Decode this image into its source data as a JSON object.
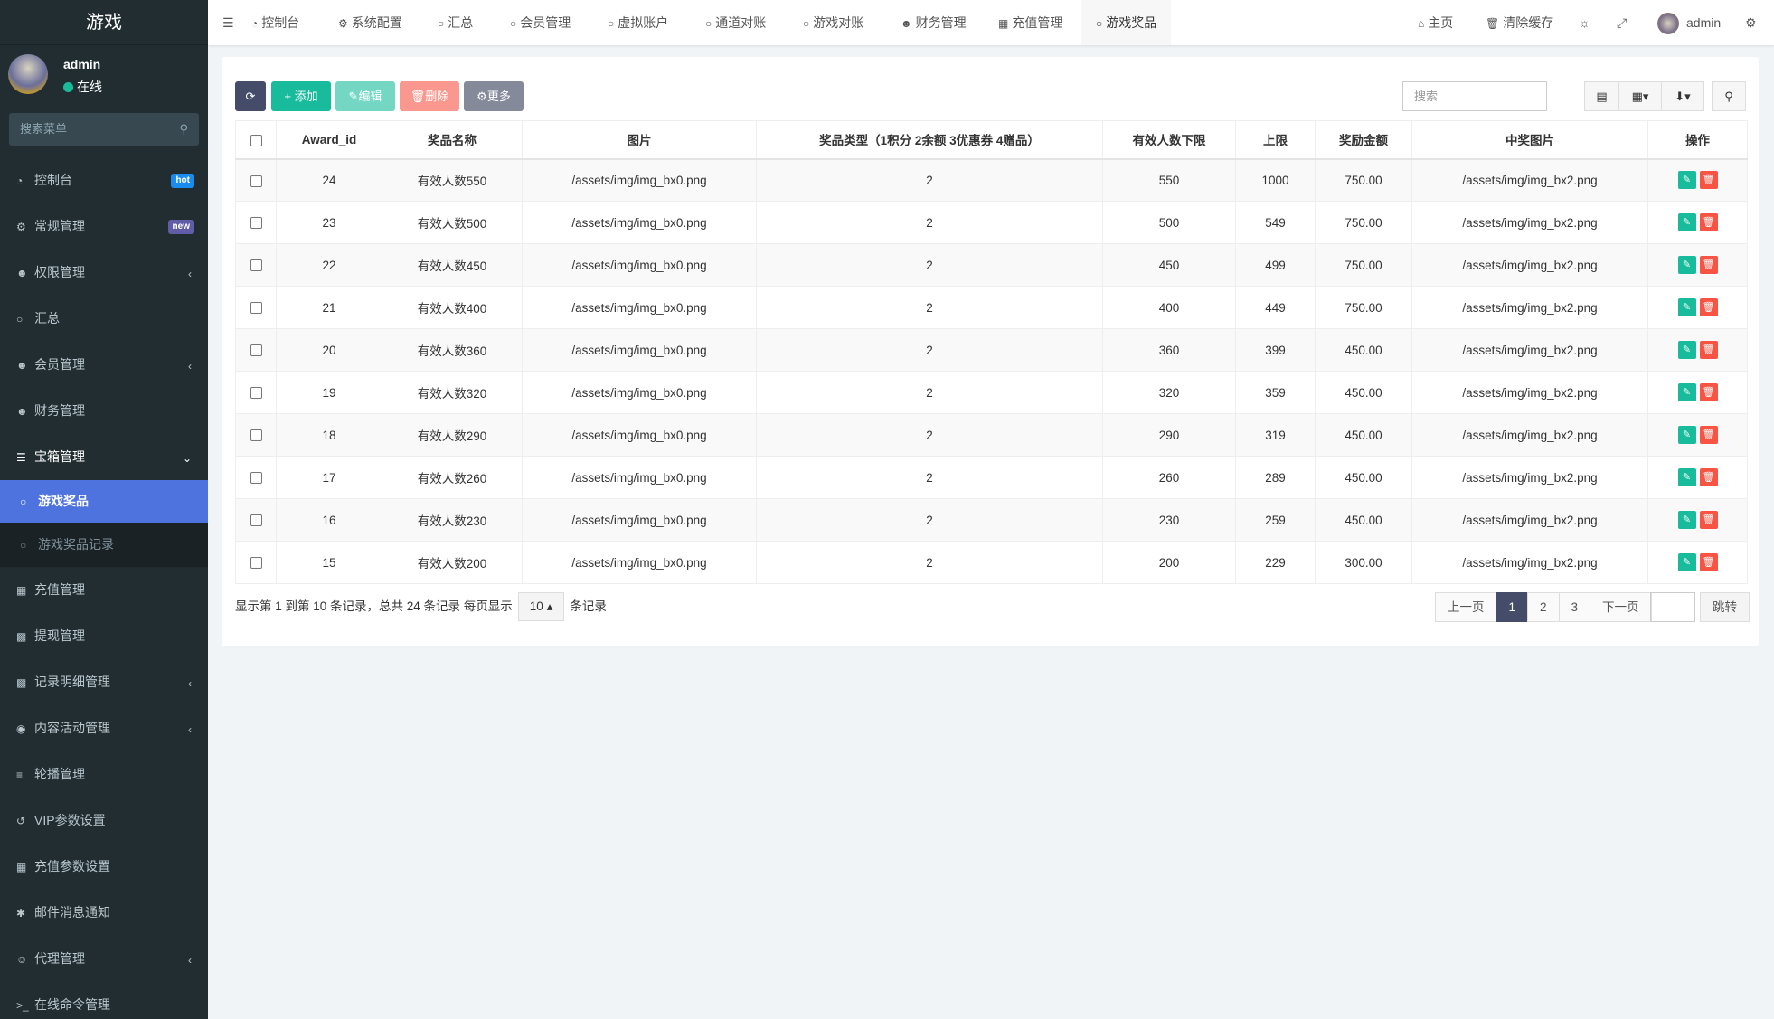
{
  "app": {
    "title": "游戏"
  },
  "user": {
    "name": "admin",
    "status": "在线"
  },
  "menu_search": {
    "placeholder": "搜索菜单"
  },
  "colors": {
    "sidebar": "#222d32",
    "active": "#4e73df",
    "primary": "#444c69",
    "success": "#18bc9c",
    "danger": "#f75444",
    "hot": "#1a8cf0",
    "new": "#605ca8"
  },
  "sidebar": {
    "items": [
      {
        "label": "控制台",
        "icon": "dashboard-icon",
        "badge": "hot"
      },
      {
        "label": "常规管理",
        "icon": "cogs-icon",
        "badge": "new"
      },
      {
        "label": "权限管理",
        "icon": "users-icon",
        "chevron": "left"
      },
      {
        "label": "汇总",
        "icon": "circle-icon"
      },
      {
        "label": "会员管理",
        "icon": "users-icon",
        "chevron": "left"
      },
      {
        "label": "财务管理",
        "icon": "users-icon"
      },
      {
        "label": "宝箱管理",
        "icon": "list-icon",
        "chevron": "down"
      }
    ],
    "sub": [
      {
        "label": "游戏奖品",
        "active": true
      },
      {
        "label": "游戏奖品记录"
      }
    ],
    "items2": [
      {
        "label": "充值管理",
        "icon": "th-large-icon"
      },
      {
        "label": "提现管理",
        "icon": "fort-icon"
      },
      {
        "label": "记录明细管理",
        "icon": "bar-chart-icon",
        "chevron": "left"
      },
      {
        "label": "内容活动管理",
        "icon": "ban-icon",
        "chevron": "left"
      },
      {
        "label": "轮播管理",
        "icon": "bars-icon"
      },
      {
        "label": "VIP参数设置",
        "icon": "history-icon"
      },
      {
        "label": "充值参数设置",
        "icon": "th-icon"
      },
      {
        "label": "邮件消息通知",
        "icon": "asterisk-icon"
      },
      {
        "label": "代理管理",
        "icon": "user-circle-icon",
        "chevron": "left"
      },
      {
        "label": "在线命令管理",
        "icon": "terminal-icon"
      }
    ]
  },
  "topnav": {
    "tabs": [
      {
        "label": "控制台",
        "icon": "dashboard-icon"
      },
      {
        "label": "系统配置",
        "icon": "cog-icon"
      },
      {
        "label": "汇总",
        "icon": "circle-icon"
      },
      {
        "label": "会员管理",
        "icon": "circle-icon"
      },
      {
        "label": "虚拟账户",
        "icon": "circle-icon"
      },
      {
        "label": "通道对账",
        "icon": "circle-icon"
      },
      {
        "label": "游戏对账",
        "icon": "circle-icon"
      },
      {
        "label": "财务管理",
        "icon": "users-icon"
      },
      {
        "label": "充值管理",
        "icon": "th-large-icon"
      },
      {
        "label": "游戏奖品",
        "icon": "circle-icon",
        "active": true
      }
    ],
    "right": {
      "home": "主页",
      "clear_cache": "清除缓存",
      "user": "admin"
    }
  },
  "toolbar": {
    "add": "添加",
    "edit": "编辑",
    "delete": "删除",
    "more": "更多",
    "search_placeholder": "搜索"
  },
  "table": {
    "columns": [
      "Award_id",
      "奖品名称",
      "图片",
      "奖品类型（1积分 2余额 3优惠券 4赠品）",
      "有效人数下限",
      "上限",
      "奖励金额",
      "中奖图片",
      "操作"
    ],
    "rows": [
      [
        "24",
        "有效人数550",
        "/assets/img/img_bx0.png",
        "2",
        "550",
        "1000",
        "750.00",
        "/assets/img/img_bx2.png"
      ],
      [
        "23",
        "有效人数500",
        "/assets/img/img_bx0.png",
        "2",
        "500",
        "549",
        "750.00",
        "/assets/img/img_bx2.png"
      ],
      [
        "22",
        "有效人数450",
        "/assets/img/img_bx0.png",
        "2",
        "450",
        "499",
        "750.00",
        "/assets/img/img_bx2.png"
      ],
      [
        "21",
        "有效人数400",
        "/assets/img/img_bx0.png",
        "2",
        "400",
        "449",
        "750.00",
        "/assets/img/img_bx2.png"
      ],
      [
        "20",
        "有效人数360",
        "/assets/img/img_bx0.png",
        "2",
        "360",
        "399",
        "450.00",
        "/assets/img/img_bx2.png"
      ],
      [
        "19",
        "有效人数320",
        "/assets/img/img_bx0.png",
        "2",
        "320",
        "359",
        "450.00",
        "/assets/img/img_bx2.png"
      ],
      [
        "18",
        "有效人数290",
        "/assets/img/img_bx0.png",
        "2",
        "290",
        "319",
        "450.00",
        "/assets/img/img_bx2.png"
      ],
      [
        "17",
        "有效人数260",
        "/assets/img/img_bx0.png",
        "2",
        "260",
        "289",
        "450.00",
        "/assets/img/img_bx2.png"
      ],
      [
        "16",
        "有效人数230",
        "/assets/img/img_bx0.png",
        "2",
        "230",
        "259",
        "450.00",
        "/assets/img/img_bx2.png"
      ],
      [
        "15",
        "有效人数200",
        "/assets/img/img_bx0.png",
        "2",
        "200",
        "229",
        "300.00",
        "/assets/img/img_bx2.png"
      ]
    ]
  },
  "footer": {
    "summary": "显示第 1 到第 10 条记录，总共 24 条记录 每页显示",
    "page_size": "10",
    "suffix": "条记录"
  },
  "pagination": {
    "prev": "上一页",
    "pages": [
      "1",
      "2",
      "3"
    ],
    "current": "1",
    "next": "下一页",
    "jump": "跳转",
    "jump_value": ""
  }
}
